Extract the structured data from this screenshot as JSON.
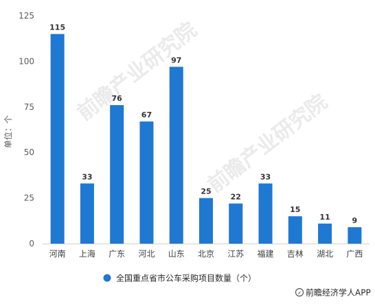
{
  "chart_data": {
    "type": "bar",
    "categories": [
      "河南",
      "上海",
      "广东",
      "河北",
      "山东",
      "北京",
      "江苏",
      "福建",
      "吉林",
      "湖北",
      "广西"
    ],
    "series": [
      {
        "name": "全国重点省市公车采购项目数量（个）",
        "values": [
          115,
          33,
          76,
          67,
          97,
          25,
          22,
          33,
          15,
          11,
          9
        ]
      }
    ],
    "ylabel": "单位：个",
    "ylim": [
      0,
      125
    ],
    "yticks": [
      0,
      25,
      50,
      75,
      100,
      125
    ],
    "grid": false,
    "legend_position": "bottom",
    "bar_color": "#1f78d1"
  },
  "watermark": {
    "text": "前瞻产业研究院"
  },
  "credit": {
    "text": "前瞻经济学人APP",
    "icon": "compass-logo-icon"
  }
}
